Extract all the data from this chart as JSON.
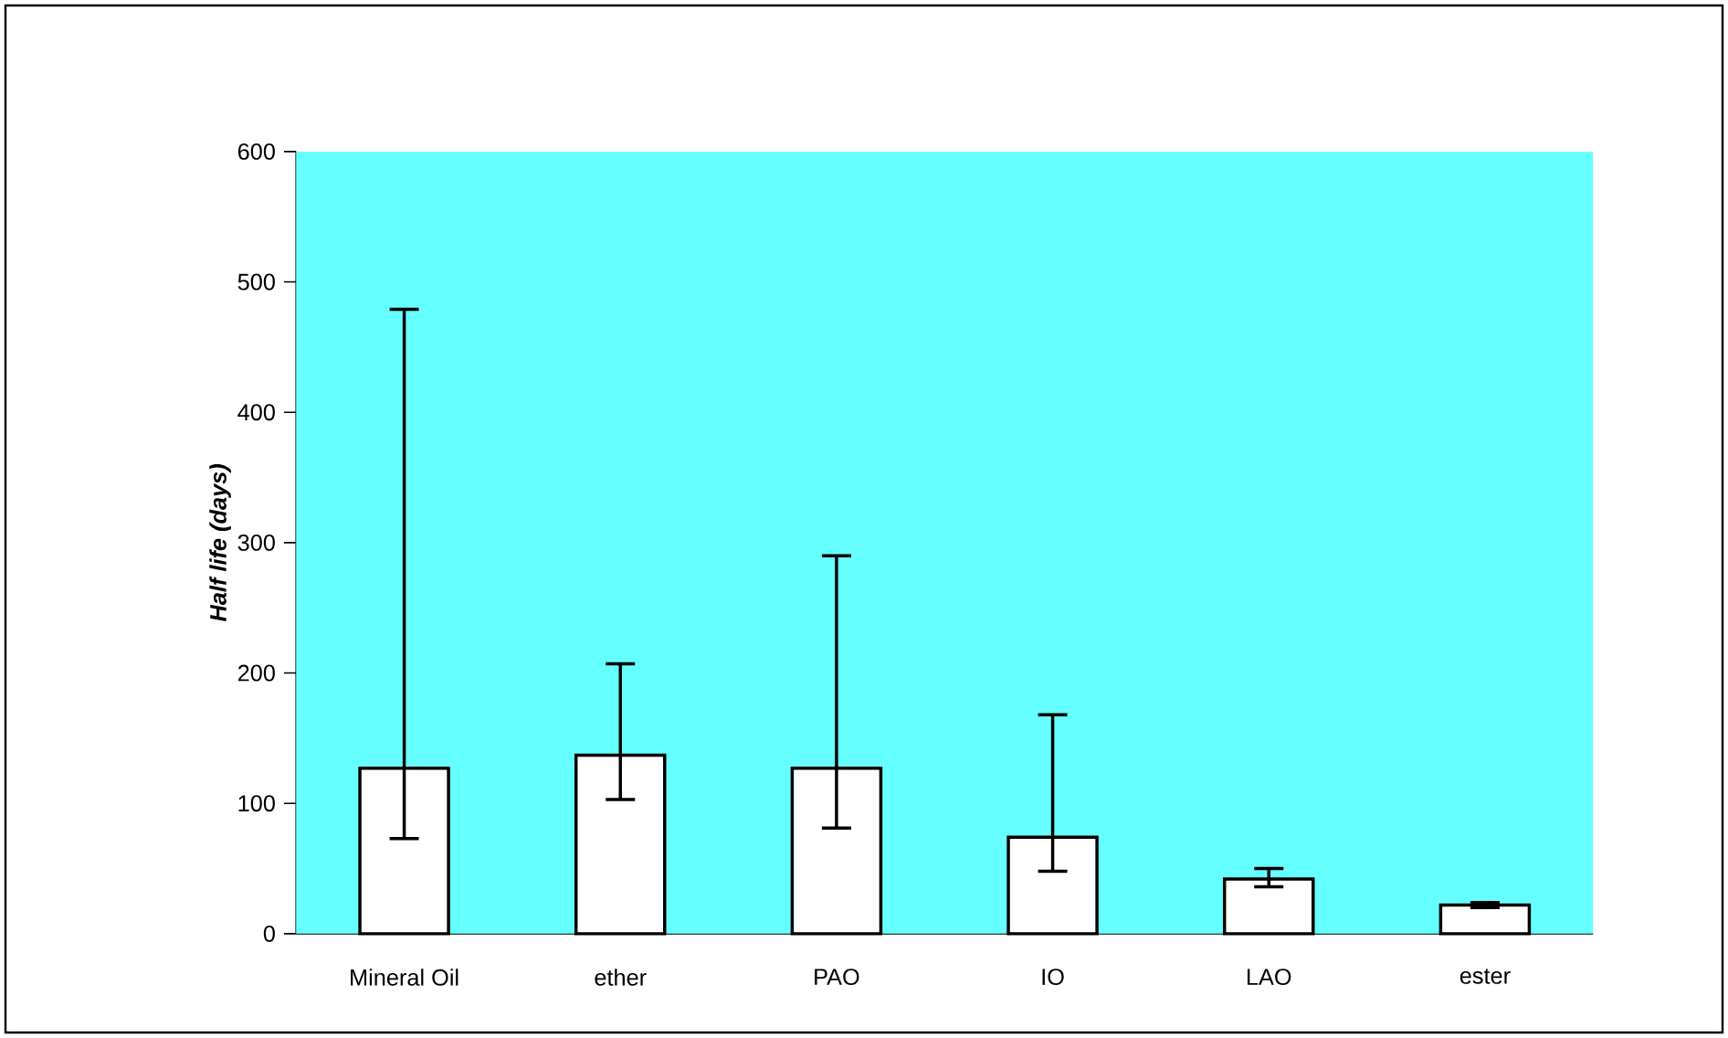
{
  "chart_data": {
    "type": "bar",
    "ylabel": "*Half life (days)*",
    "categories": [
      "Mineral Oil",
      "ether",
      "PAO",
      "IO",
      "LAO",
      "ester"
    ],
    "values": [
      127,
      137,
      127,
      74,
      42,
      22
    ],
    "errors": [
      [
        73,
        479
      ],
      [
        103,
        207
      ],
      [
        81,
        290
      ],
      [
        48,
        168
      ],
      [
        36,
        50
      ],
      [
        20,
        24
      ]
    ],
    "color": "#ffffff",
    "ylim": [
      0,
      600
    ],
    "yticks": [
      0,
      100,
      200,
      300,
      400,
      500,
      600
    ]
  }
}
